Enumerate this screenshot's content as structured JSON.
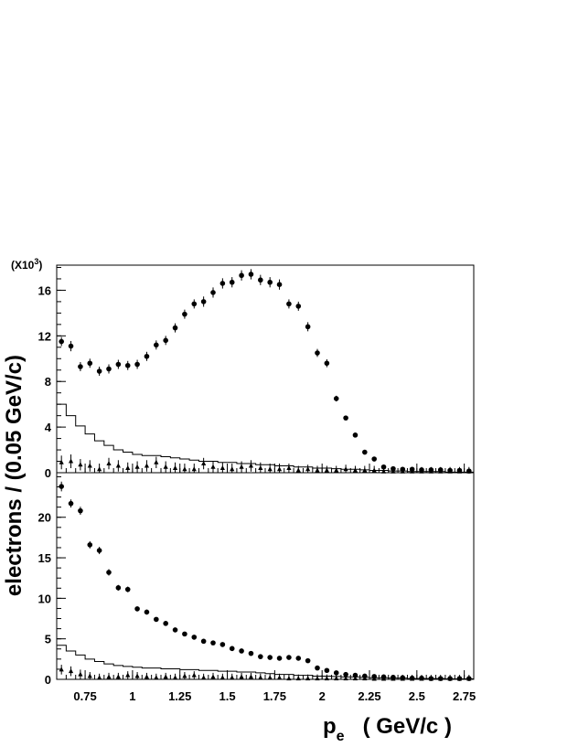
{
  "chart_data": [
    {
      "type": "scatter",
      "panel": "top",
      "scale_label": {
        "prefix": "(X10",
        "exponent": "3",
        "suffix": ")"
      },
      "ylim": [
        0,
        18.2
      ],
      "yticks": [
        0,
        4,
        8,
        12,
        16
      ],
      "ytick_labels": [
        "0",
        "4",
        "8",
        "12",
        "16"
      ],
      "xlim": [
        0.6,
        2.8
      ],
      "grid": false,
      "series": [
        {
          "marker": "circle",
          "x": [
            0.625,
            0.675,
            0.725,
            0.775,
            0.825,
            0.875,
            0.925,
            0.975,
            1.025,
            1.075,
            1.125,
            1.175,
            1.225,
            1.275,
            1.325,
            1.375,
            1.425,
            1.475,
            1.525,
            1.575,
            1.625,
            1.675,
            1.725,
            1.775,
            1.825,
            1.875,
            1.925,
            1.975,
            2.025,
            2.075,
            2.125,
            2.175,
            2.225,
            2.275,
            2.325,
            2.375,
            2.425,
            2.475,
            2.525,
            2.575,
            2.625,
            2.675,
            2.725,
            2.775
          ],
          "y": [
            11.5,
            11.1,
            9.3,
            9.6,
            8.9,
            9.1,
            9.5,
            9.4,
            9.5,
            10.2,
            11.2,
            11.6,
            12.7,
            13.9,
            14.8,
            15.0,
            15.8,
            16.6,
            16.7,
            17.3,
            17.4,
            16.9,
            16.7,
            16.5,
            14.8,
            14.6,
            12.8,
            10.5,
            9.6,
            6.5,
            4.8,
            3.3,
            1.8,
            1.2,
            0.5,
            0.35,
            0.3,
            0.3,
            0.25,
            0.25,
            0.25,
            0.2,
            0.2,
            0.15
          ],
          "yerr": [
            0.4,
            0.45,
            0.4,
            0.4,
            0.4,
            0.4,
            0.4,
            0.4,
            0.4,
            0.4,
            0.4,
            0.4,
            0.4,
            0.4,
            0.4,
            0.45,
            0.45,
            0.45,
            0.45,
            0.45,
            0.45,
            0.45,
            0.45,
            0.45,
            0.4,
            0.4,
            0.4,
            0.35,
            0.35,
            0.25,
            0.2,
            0.15,
            0.1,
            0.1,
            0.1,
            0.1,
            0.1,
            0.1,
            0.1,
            0.1,
            0.1,
            0.1,
            0.1,
            0.1
          ]
        },
        {
          "marker": "triangle",
          "x": [
            0.625,
            0.675,
            0.725,
            0.775,
            0.825,
            0.875,
            0.925,
            0.975,
            1.025,
            1.075,
            1.125,
            1.175,
            1.225,
            1.275,
            1.325,
            1.375,
            1.425,
            1.475,
            1.525,
            1.575,
            1.625,
            1.675,
            1.725,
            1.775,
            1.825,
            1.875,
            1.925,
            1.975,
            2.025,
            2.075,
            2.125,
            2.175,
            2.225,
            2.275,
            2.325,
            2.375,
            2.425,
            2.475,
            2.525,
            2.575,
            2.625,
            2.675,
            2.725,
            2.775
          ],
          "y": [
            0.9,
            1.0,
            0.7,
            0.6,
            0.3,
            0.8,
            0.6,
            0.4,
            0.5,
            0.6,
            0.9,
            0.5,
            0.4,
            0.3,
            0.3,
            0.8,
            0.5,
            0.4,
            0.3,
            0.5,
            0.6,
            0.4,
            0.3,
            0.3,
            0.4,
            0.2,
            0.3,
            0.2,
            0.2,
            0.2,
            0.3,
            0.2,
            0.2,
            0.2,
            0.1,
            0.1,
            0.1,
            0.1,
            0.1,
            0.1,
            0.1,
            0.1,
            0.1,
            0.1
          ],
          "yerr": [
            0.6,
            0.6,
            0.5,
            0.5,
            0.5,
            0.5,
            0.5,
            0.5,
            0.5,
            0.5,
            0.5,
            0.5,
            0.5,
            0.5,
            0.5,
            0.5,
            0.5,
            0.5,
            0.5,
            0.5,
            0.5,
            0.5,
            0.5,
            0.5,
            0.4,
            0.4,
            0.4,
            0.4,
            0.4,
            0.4,
            0.4,
            0.4,
            0.4,
            0.4,
            0.4,
            0.4,
            0.4,
            0.4,
            0.4,
            0.4,
            0.4,
            0.4,
            0.4,
            0.4
          ]
        },
        {
          "marker": "histogram",
          "bin_edges": [
            0.6,
            0.65,
            0.7,
            0.75,
            0.8,
            0.85,
            0.9,
            0.95,
            1.0,
            1.05,
            1.1,
            1.15,
            1.2,
            1.25,
            1.3,
            1.35,
            1.4,
            1.45,
            1.5,
            1.55,
            1.6,
            1.65,
            1.7,
            1.75,
            1.8,
            1.85,
            1.9,
            1.95,
            2.0,
            2.05,
            2.1,
            2.15,
            2.2,
            2.25,
            2.3,
            2.35,
            2.4,
            2.45,
            2.5,
            2.55,
            2.6,
            2.65,
            2.7,
            2.75,
            2.8
          ],
          "values": [
            6.0,
            5.0,
            4.1,
            3.4,
            2.8,
            2.4,
            2.0,
            1.8,
            1.6,
            1.5,
            1.5,
            1.4,
            1.3,
            1.2,
            1.1,
            1.0,
            1.0,
            0.9,
            0.9,
            0.8,
            0.8,
            0.7,
            0.7,
            0.6,
            0.6,
            0.5,
            0.5,
            0.4,
            0.4,
            0.35,
            0.3,
            0.3,
            0.25,
            0.2,
            0.2,
            0.15,
            0.15,
            0.1,
            0.1,
            0.1,
            0.1,
            0.05,
            0.05,
            0.05
          ]
        }
      ]
    },
    {
      "type": "scatter",
      "panel": "bottom",
      "ylim": [
        0,
        25.5
      ],
      "yticks": [
        0,
        5,
        10,
        15,
        20
      ],
      "ytick_labels": [
        "0",
        "5",
        "10",
        "15",
        "20"
      ],
      "xlim": [
        0.6,
        2.8
      ],
      "xticks": [
        0.75,
        1,
        1.25,
        1.5,
        1.75,
        2,
        2.25,
        2.5,
        2.75
      ],
      "xtick_labels": [
        "0.75",
        "1",
        "1.25",
        "1.5",
        "1.75",
        "2",
        "2.25",
        "2.5",
        "2.75"
      ],
      "grid": false,
      "series": [
        {
          "marker": "circle",
          "x": [
            0.625,
            0.675,
            0.725,
            0.775,
            0.825,
            0.875,
            0.925,
            0.975,
            1.025,
            1.075,
            1.125,
            1.175,
            1.225,
            1.275,
            1.325,
            1.375,
            1.425,
            1.475,
            1.525,
            1.575,
            1.625,
            1.675,
            1.725,
            1.775,
            1.825,
            1.875,
            1.925,
            1.975,
            2.025,
            2.075,
            2.125,
            2.175,
            2.225,
            2.275,
            2.325,
            2.375,
            2.425,
            2.475,
            2.525,
            2.575,
            2.625,
            2.675,
            2.725,
            2.775
          ],
          "y": [
            23.8,
            21.7,
            20.8,
            16.6,
            15.9,
            13.2,
            11.3,
            11.1,
            8.7,
            8.3,
            7.4,
            6.9,
            6.1,
            5.6,
            5.2,
            4.7,
            4.5,
            4.3,
            3.8,
            3.5,
            3.2,
            2.8,
            2.7,
            2.6,
            2.7,
            2.6,
            2.3,
            1.4,
            1.1,
            0.8,
            0.6,
            0.5,
            0.4,
            0.35,
            0.3,
            0.25,
            0.2,
            0.15,
            0.15,
            0.1,
            0.1,
            0.1,
            0.1,
            0.1
          ],
          "yerr": [
            0.6,
            0.5,
            0.5,
            0.45,
            0.45,
            0.4,
            0.35,
            0.35,
            0.3,
            0.3,
            0.2,
            0.2,
            0.2,
            0.2,
            0.2,
            0.2,
            0.2,
            0.2,
            0.2,
            0.15,
            0.15,
            0.15,
            0.15,
            0.15,
            0.15,
            0.15,
            0.15,
            0.1,
            0.1,
            0.1,
            0.1,
            0.1,
            0.1,
            0.1,
            0.1,
            0.1,
            0.1,
            0.1,
            0.1,
            0.1,
            0.1,
            0.1,
            0.1,
            0.1
          ]
        },
        {
          "marker": "triangle",
          "x": [
            0.625,
            0.675,
            0.725,
            0.775,
            0.825,
            0.875,
            0.925,
            0.975,
            1.025,
            1.075,
            1.125,
            1.175,
            1.225,
            1.275,
            1.325,
            1.375,
            1.425,
            1.475,
            1.525,
            1.575,
            1.625,
            1.675,
            1.725,
            1.775,
            1.825,
            1.875,
            1.925,
            1.975,
            2.025,
            2.075,
            2.125,
            2.175,
            2.225,
            2.275,
            2.325,
            2.375,
            2.425,
            2.475,
            2.525,
            2.575,
            2.625,
            2.675,
            2.725,
            2.775
          ],
          "y": [
            1.2,
            1.0,
            0.6,
            0.4,
            0.2,
            0.3,
            0.3,
            0.5,
            0.4,
            0.3,
            0.2,
            0.3,
            0.2,
            0.4,
            0.5,
            0.2,
            0.3,
            0.2,
            0.2,
            0.3,
            0.3,
            0.2,
            0.2,
            0.2,
            0.1,
            0.1,
            0.1,
            0.1,
            0.1,
            0.1,
            0.1,
            0.1,
            0.1,
            0.05,
            0.05,
            0.05,
            0.05,
            0.05,
            0.05,
            0.05,
            0.05,
            0.05,
            0.05,
            0.05
          ],
          "yerr": [
            0.6,
            0.6,
            0.6,
            0.5,
            0.5,
            0.5,
            0.5,
            0.5,
            0.5,
            0.5,
            0.5,
            0.5,
            0.5,
            0.5,
            0.5,
            0.5,
            0.5,
            0.5,
            0.5,
            0.5,
            0.5,
            0.5,
            0.5,
            0.5,
            0.5,
            0.5,
            0.5,
            0.5,
            0.5,
            0.5,
            0.5,
            0.5,
            0.5,
            0.5,
            0.5,
            0.5,
            0.5,
            0.5,
            0.5,
            0.5,
            0.5,
            0.5,
            0.5,
            0.5
          ]
        },
        {
          "marker": "histogram",
          "bin_edges": [
            0.6,
            0.65,
            0.7,
            0.75,
            0.8,
            0.85,
            0.9,
            0.95,
            1.0,
            1.05,
            1.1,
            1.15,
            1.2,
            1.25,
            1.3,
            1.35,
            1.4,
            1.45,
            1.5,
            1.55,
            1.6,
            1.65,
            1.7,
            1.75,
            1.8,
            1.85,
            1.9,
            1.95,
            2.0,
            2.05,
            2.1,
            2.15,
            2.2,
            2.25,
            2.3,
            2.35,
            2.4,
            2.45,
            2.5,
            2.55,
            2.6,
            2.65,
            2.7,
            2.75,
            2.8
          ],
          "values": [
            4.2,
            3.5,
            3.0,
            2.5,
            2.2,
            1.9,
            1.7,
            1.6,
            1.5,
            1.4,
            1.4,
            1.3,
            1.3,
            1.2,
            1.2,
            1.1,
            1.1,
            1.0,
            1.0,
            0.9,
            0.9,
            0.8,
            0.7,
            0.6,
            0.6,
            0.5,
            0.5,
            0.4,
            0.4,
            0.35,
            0.3,
            0.3,
            0.25,
            0.2,
            0.2,
            0.15,
            0.15,
            0.1,
            0.1,
            0.1,
            0.1,
            0.05,
            0.05,
            0.05
          ]
        }
      ]
    }
  ],
  "axes": {
    "ylabel": "electrons / (0.05 GeV/c)",
    "xlabel_symbol": "p",
    "xlabel_subscript": "e",
    "xlabel_units": "( GeV/c )"
  }
}
